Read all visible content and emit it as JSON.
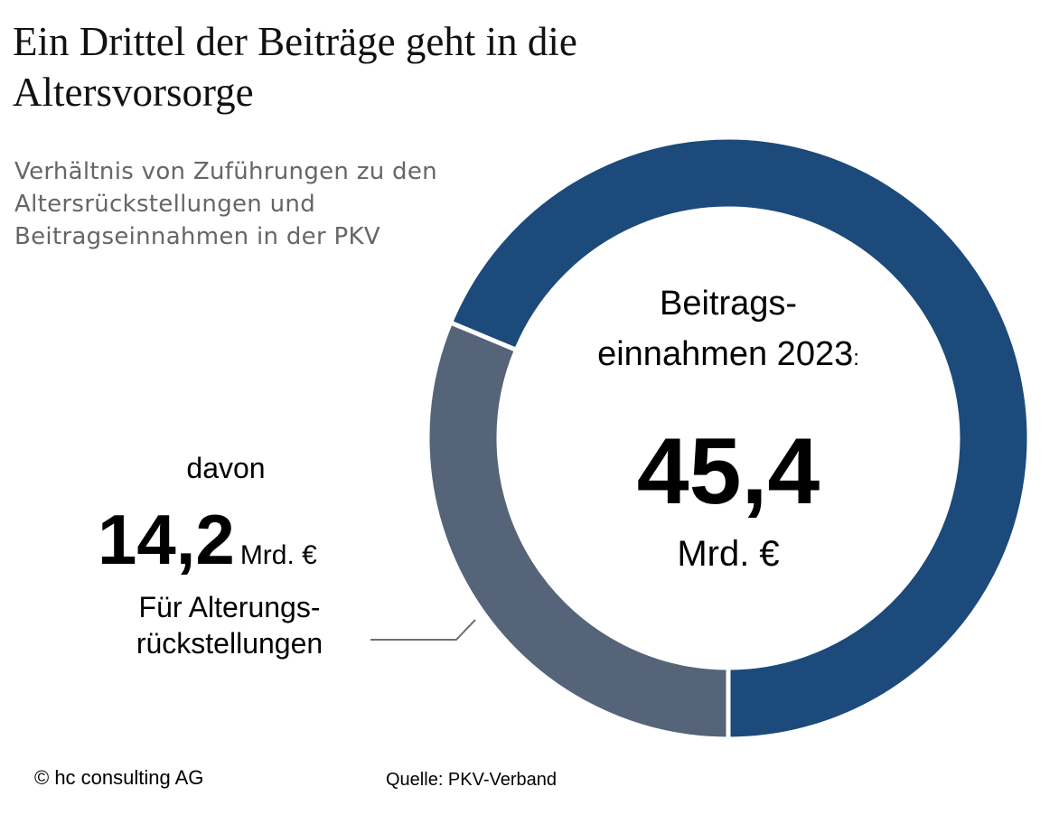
{
  "title": "Ein Drittel der Beiträge geht in die Altersvorsorge",
  "subtitle": "Verhältnis von Zuführungen zu den Altersrückstellungen und Beitragseinnahmen in der PKV",
  "center": {
    "label_line1": "Beitrags-",
    "label_line2": "einnahmen 2023",
    "label_colon": ":",
    "value": "45,4",
    "unit": "Mrd. €"
  },
  "left": {
    "prefix": "davon",
    "value": "14,2",
    "unit": "Mrd. €",
    "desc_line1": "Für Alterungs-",
    "desc_line2": "rückstellungen"
  },
  "footer": {
    "copyright": "© hc consulting AG",
    "source": "Quelle: PKV-Verband"
  },
  "colors": {
    "main": "#1c4a7b",
    "part": "#56647a",
    "leader": "#707070"
  },
  "chart_data": {
    "type": "pie",
    "donut": true,
    "total": 45.4,
    "slices": [
      {
        "name": "Für Alterungsrückstellungen",
        "value": 14.2
      },
      {
        "name": "Beitragseinnahmen 2023",
        "value": 31.2
      }
    ],
    "unit": "Mrd. €"
  }
}
